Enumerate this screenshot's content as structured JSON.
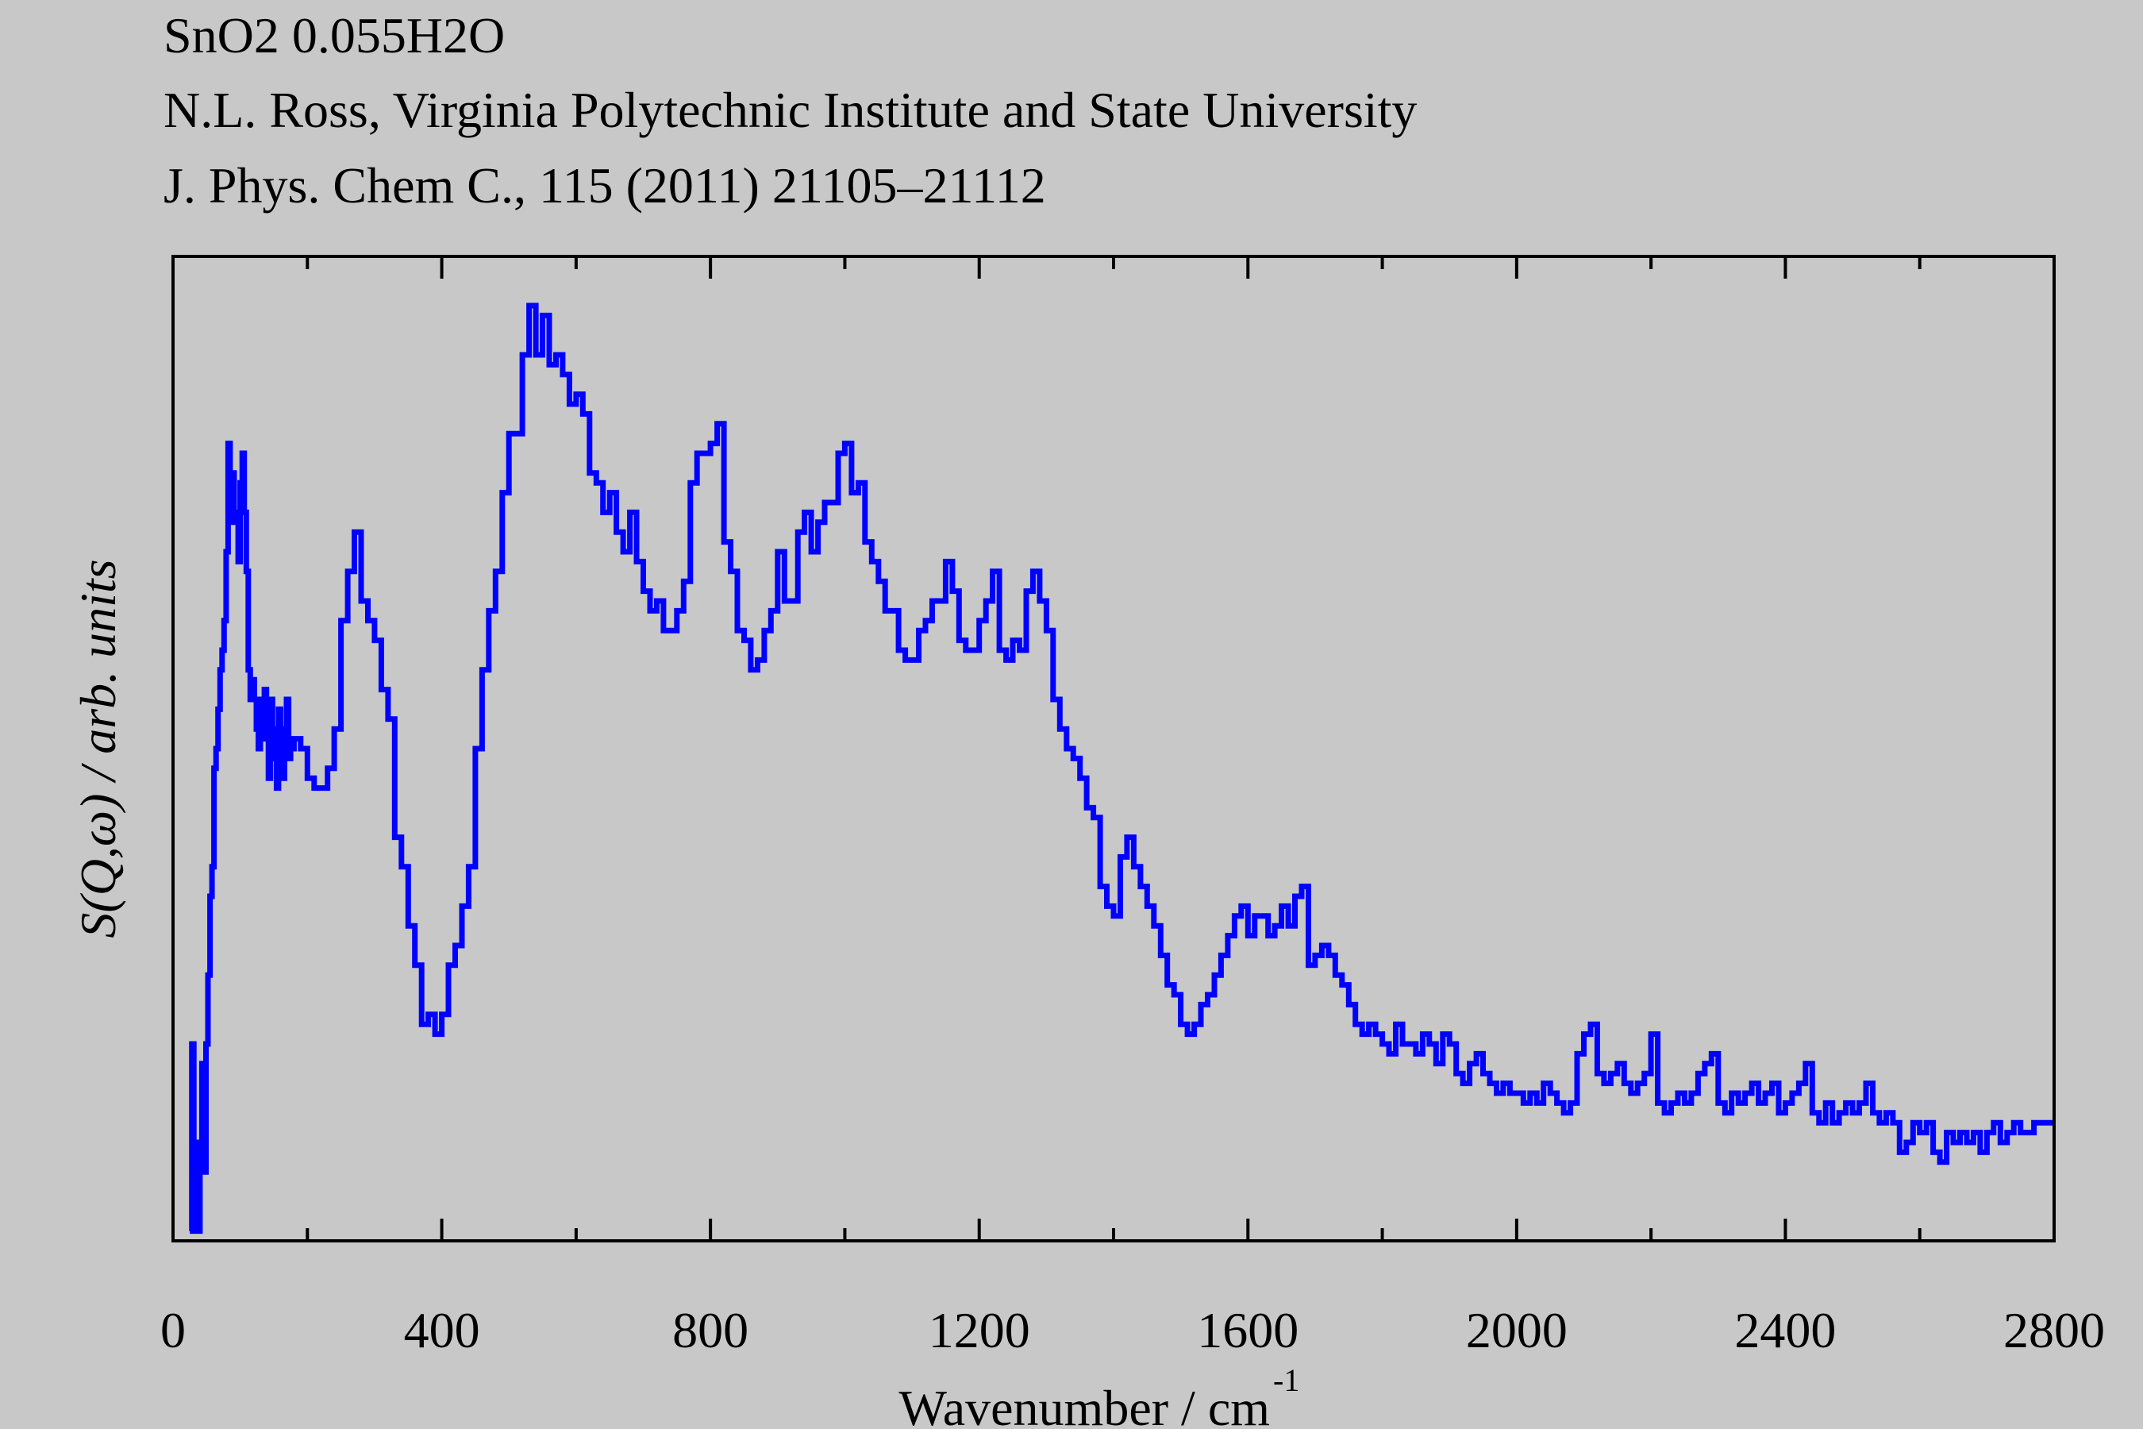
{
  "header": {
    "lines": [
      "SnO2 0.055H2O",
      "N.L. Ross, Virginia Polytechnic Institute and State University",
      "J. Phys. Chem C., 115 (2011) 21105–21112"
    ]
  },
  "chart_data": {
    "type": "line",
    "title": "SnO2 0.055H2O",
    "subtitle": [
      "N.L. Ross, Virginia Polytechnic Institute and State University",
      "J. Phys. Chem C., 115 (2011) 21105–21112"
    ],
    "xlabel": "Wavenumber / cm",
    "xlabel_superscript": "-1",
    "ylabel": "S(Q,ω) / arb. units",
    "xlim": [
      0,
      2800
    ],
    "ylim": [
      0,
      1
    ],
    "xticks": [
      0,
      400,
      800,
      1200,
      1600,
      2000,
      2400,
      2800
    ],
    "xtick_labels": [
      "0",
      "400",
      "800",
      "1200",
      "1600",
      "2000",
      "2400",
      "2800"
    ],
    "x_minor_step": 200,
    "y_tick_labels_shown": false,
    "grid": false,
    "legend": "none",
    "line_style": "step",
    "colors": {
      "line": "#0000ff",
      "background": "#c8c8c8",
      "axes": "#000000"
    },
    "series": [
      {
        "points": [
          [
            25,
            0.01
          ],
          [
            28,
            0.2
          ],
          [
            31,
            0.01
          ],
          [
            34,
            0.1
          ],
          [
            37,
            0.01
          ],
          [
            40,
            0.08
          ],
          [
            43,
            0.18
          ],
          [
            46,
            0.07
          ],
          [
            49,
            0.2
          ],
          [
            52,
            0.27
          ],
          [
            55,
            0.35
          ],
          [
            58,
            0.38
          ],
          [
            61,
            0.48
          ],
          [
            64,
            0.5
          ],
          [
            67,
            0.54
          ],
          [
            70,
            0.58
          ],
          [
            73,
            0.6
          ],
          [
            76,
            0.63
          ],
          [
            79,
            0.7
          ],
          [
            82,
            0.81
          ],
          [
            85,
            0.73
          ],
          [
            88,
            0.78
          ],
          [
            91,
            0.74
          ],
          [
            94,
            0.73
          ],
          [
            97,
            0.69
          ],
          [
            100,
            0.77
          ],
          [
            103,
            0.8
          ],
          [
            106,
            0.74
          ],
          [
            109,
            0.68
          ],
          [
            112,
            0.58
          ],
          [
            115,
            0.55
          ],
          [
            118,
            0.57
          ],
          [
            121,
            0.55
          ],
          [
            124,
            0.52
          ],
          [
            127,
            0.5
          ],
          [
            130,
            0.55
          ],
          [
            133,
            0.51
          ],
          [
            136,
            0.56
          ],
          [
            139,
            0.53
          ],
          [
            142,
            0.47
          ],
          [
            145,
            0.55
          ],
          [
            148,
            0.52
          ],
          [
            151,
            0.49
          ],
          [
            154,
            0.46
          ],
          [
            157,
            0.54
          ],
          [
            160,
            0.52
          ],
          [
            163,
            0.47
          ],
          [
            166,
            0.52
          ],
          [
            169,
            0.55
          ],
          [
            172,
            0.49
          ],
          [
            175,
            0.5
          ],
          [
            180,
            0.51
          ],
          [
            190,
            0.5
          ],
          [
            200,
            0.47
          ],
          [
            210,
            0.46
          ],
          [
            220,
            0.46
          ],
          [
            230,
            0.48
          ],
          [
            240,
            0.52
          ],
          [
            250,
            0.63
          ],
          [
            260,
            0.68
          ],
          [
            270,
            0.72
          ],
          [
            280,
            0.65
          ],
          [
            290,
            0.63
          ],
          [
            300,
            0.61
          ],
          [
            310,
            0.56
          ],
          [
            320,
            0.53
          ],
          [
            330,
            0.41
          ],
          [
            340,
            0.38
          ],
          [
            350,
            0.32
          ],
          [
            360,
            0.28
          ],
          [
            370,
            0.22
          ],
          [
            380,
            0.23
          ],
          [
            390,
            0.21
          ],
          [
            400,
            0.23
          ],
          [
            410,
            0.28
          ],
          [
            420,
            0.3
          ],
          [
            430,
            0.34
          ],
          [
            440,
            0.38
          ],
          [
            450,
            0.5
          ],
          [
            460,
            0.58
          ],
          [
            470,
            0.64
          ],
          [
            480,
            0.68
          ],
          [
            490,
            0.76
          ],
          [
            500,
            0.82
          ],
          [
            510,
            0.82
          ],
          [
            520,
            0.9
          ],
          [
            530,
            0.95
          ],
          [
            540,
            0.9
          ],
          [
            550,
            0.94
          ],
          [
            560,
            0.89
          ],
          [
            570,
            0.9
          ],
          [
            580,
            0.88
          ],
          [
            590,
            0.85
          ],
          [
            600,
            0.86
          ],
          [
            610,
            0.84
          ],
          [
            620,
            0.78
          ],
          [
            630,
            0.77
          ],
          [
            640,
            0.74
          ],
          [
            650,
            0.76
          ],
          [
            660,
            0.72
          ],
          [
            670,
            0.7
          ],
          [
            680,
            0.74
          ],
          [
            690,
            0.69
          ],
          [
            700,
            0.66
          ],
          [
            710,
            0.64
          ],
          [
            720,
            0.65
          ],
          [
            730,
            0.62
          ],
          [
            740,
            0.62
          ],
          [
            750,
            0.64
          ],
          [
            760,
            0.67
          ],
          [
            770,
            0.77
          ],
          [
            780,
            0.8
          ],
          [
            790,
            0.8
          ],
          [
            800,
            0.81
          ],
          [
            810,
            0.83
          ],
          [
            820,
            0.71
          ],
          [
            830,
            0.68
          ],
          [
            840,
            0.62
          ],
          [
            850,
            0.61
          ],
          [
            860,
            0.58
          ],
          [
            870,
            0.59
          ],
          [
            880,
            0.62
          ],
          [
            890,
            0.64
          ],
          [
            900,
            0.7
          ],
          [
            910,
            0.65
          ],
          [
            920,
            0.65
          ],
          [
            930,
            0.72
          ],
          [
            940,
            0.74
          ],
          [
            950,
            0.7
          ],
          [
            960,
            0.73
          ],
          [
            970,
            0.75
          ],
          [
            980,
            0.75
          ],
          [
            990,
            0.8
          ],
          [
            1000,
            0.81
          ],
          [
            1010,
            0.76
          ],
          [
            1020,
            0.77
          ],
          [
            1030,
            0.71
          ],
          [
            1040,
            0.69
          ],
          [
            1050,
            0.67
          ],
          [
            1060,
            0.64
          ],
          [
            1070,
            0.64
          ],
          [
            1080,
            0.6
          ],
          [
            1090,
            0.59
          ],
          [
            1100,
            0.59
          ],
          [
            1110,
            0.62
          ],
          [
            1120,
            0.63
          ],
          [
            1130,
            0.65
          ],
          [
            1140,
            0.65
          ],
          [
            1150,
            0.69
          ],
          [
            1160,
            0.66
          ],
          [
            1170,
            0.61
          ],
          [
            1180,
            0.6
          ],
          [
            1190,
            0.6
          ],
          [
            1200,
            0.63
          ],
          [
            1210,
            0.65
          ],
          [
            1220,
            0.68
          ],
          [
            1230,
            0.6
          ],
          [
            1240,
            0.59
          ],
          [
            1250,
            0.61
          ],
          [
            1260,
            0.6
          ],
          [
            1270,
            0.66
          ],
          [
            1280,
            0.68
          ],
          [
            1290,
            0.65
          ],
          [
            1300,
            0.62
          ],
          [
            1310,
            0.55
          ],
          [
            1320,
            0.52
          ],
          [
            1330,
            0.5
          ],
          [
            1340,
            0.49
          ],
          [
            1350,
            0.47
          ],
          [
            1360,
            0.44
          ],
          [
            1370,
            0.43
          ],
          [
            1380,
            0.36
          ],
          [
            1390,
            0.34
          ],
          [
            1400,
            0.33
          ],
          [
            1410,
            0.39
          ],
          [
            1420,
            0.41
          ],
          [
            1430,
            0.38
          ],
          [
            1440,
            0.36
          ],
          [
            1450,
            0.34
          ],
          [
            1460,
            0.32
          ],
          [
            1470,
            0.29
          ],
          [
            1480,
            0.26
          ],
          [
            1490,
            0.25
          ],
          [
            1500,
            0.22
          ],
          [
            1510,
            0.21
          ],
          [
            1520,
            0.22
          ],
          [
            1530,
            0.24
          ],
          [
            1540,
            0.25
          ],
          [
            1550,
            0.27
          ],
          [
            1560,
            0.29
          ],
          [
            1570,
            0.31
          ],
          [
            1580,
            0.33
          ],
          [
            1590,
            0.34
          ],
          [
            1600,
            0.31
          ],
          [
            1610,
            0.33
          ],
          [
            1620,
            0.33
          ],
          [
            1630,
            0.31
          ],
          [
            1640,
            0.32
          ],
          [
            1650,
            0.34
          ],
          [
            1660,
            0.32
          ],
          [
            1670,
            0.35
          ],
          [
            1680,
            0.36
          ],
          [
            1690,
            0.28
          ],
          [
            1700,
            0.29
          ],
          [
            1710,
            0.3
          ],
          [
            1720,
            0.29
          ],
          [
            1730,
            0.27
          ],
          [
            1740,
            0.26
          ],
          [
            1750,
            0.24
          ],
          [
            1760,
            0.22
          ],
          [
            1770,
            0.21
          ],
          [
            1780,
            0.22
          ],
          [
            1790,
            0.21
          ],
          [
            1800,
            0.2
          ],
          [
            1810,
            0.19
          ],
          [
            1820,
            0.22
          ],
          [
            1830,
            0.2
          ],
          [
            1840,
            0.2
          ],
          [
            1850,
            0.19
          ],
          [
            1860,
            0.21
          ],
          [
            1870,
            0.2
          ],
          [
            1880,
            0.18
          ],
          [
            1890,
            0.21
          ],
          [
            1900,
            0.2
          ],
          [
            1910,
            0.17
          ],
          [
            1920,
            0.16
          ],
          [
            1930,
            0.18
          ],
          [
            1940,
            0.19
          ],
          [
            1950,
            0.17
          ],
          [
            1960,
            0.16
          ],
          [
            1970,
            0.15
          ],
          [
            1980,
            0.16
          ],
          [
            1990,
            0.15
          ],
          [
            2000,
            0.15
          ],
          [
            2010,
            0.14
          ],
          [
            2020,
            0.15
          ],
          [
            2030,
            0.14
          ],
          [
            2040,
            0.16
          ],
          [
            2050,
            0.15
          ],
          [
            2060,
            0.14
          ],
          [
            2070,
            0.13
          ],
          [
            2080,
            0.14
          ],
          [
            2090,
            0.19
          ],
          [
            2100,
            0.21
          ],
          [
            2110,
            0.22
          ],
          [
            2120,
            0.17
          ],
          [
            2130,
            0.16
          ],
          [
            2140,
            0.17
          ],
          [
            2150,
            0.18
          ],
          [
            2160,
            0.16
          ],
          [
            2170,
            0.15
          ],
          [
            2180,
            0.16
          ],
          [
            2190,
            0.17
          ],
          [
            2200,
            0.21
          ],
          [
            2210,
            0.14
          ],
          [
            2220,
            0.13
          ],
          [
            2230,
            0.14
          ],
          [
            2240,
            0.15
          ],
          [
            2250,
            0.14
          ],
          [
            2260,
            0.15
          ],
          [
            2270,
            0.17
          ],
          [
            2280,
            0.18
          ],
          [
            2290,
            0.19
          ],
          [
            2300,
            0.14
          ],
          [
            2310,
            0.13
          ],
          [
            2320,
            0.15
          ],
          [
            2330,
            0.14
          ],
          [
            2340,
            0.15
          ],
          [
            2350,
            0.16
          ],
          [
            2360,
            0.14
          ],
          [
            2370,
            0.15
          ],
          [
            2380,
            0.16
          ],
          [
            2390,
            0.13
          ],
          [
            2400,
            0.14
          ],
          [
            2410,
            0.15
          ],
          [
            2420,
            0.16
          ],
          [
            2430,
            0.18
          ],
          [
            2440,
            0.13
          ],
          [
            2450,
            0.12
          ],
          [
            2460,
            0.14
          ],
          [
            2470,
            0.12
          ],
          [
            2480,
            0.13
          ],
          [
            2490,
            0.14
          ],
          [
            2500,
            0.13
          ],
          [
            2510,
            0.14
          ],
          [
            2520,
            0.16
          ],
          [
            2530,
            0.13
          ],
          [
            2540,
            0.12
          ],
          [
            2550,
            0.13
          ],
          [
            2560,
            0.12
          ],
          [
            2570,
            0.09
          ],
          [
            2580,
            0.1
          ],
          [
            2590,
            0.12
          ],
          [
            2600,
            0.11
          ],
          [
            2610,
            0.12
          ],
          [
            2620,
            0.09
          ],
          [
            2630,
            0.08
          ],
          [
            2640,
            0.11
          ],
          [
            2650,
            0.1
          ],
          [
            2660,
            0.11
          ],
          [
            2670,
            0.1
          ],
          [
            2680,
            0.11
          ],
          [
            2690,
            0.09
          ],
          [
            2700,
            0.11
          ],
          [
            2710,
            0.12
          ],
          [
            2720,
            0.1
          ],
          [
            2730,
            0.11
          ],
          [
            2740,
            0.12
          ],
          [
            2750,
            0.11
          ],
          [
            2760,
            0.11
          ],
          [
            2770,
            0.12
          ],
          [
            2780,
            0.12
          ],
          [
            2790,
            0.12
          ],
          [
            2800,
            0.12
          ]
        ]
      }
    ]
  }
}
